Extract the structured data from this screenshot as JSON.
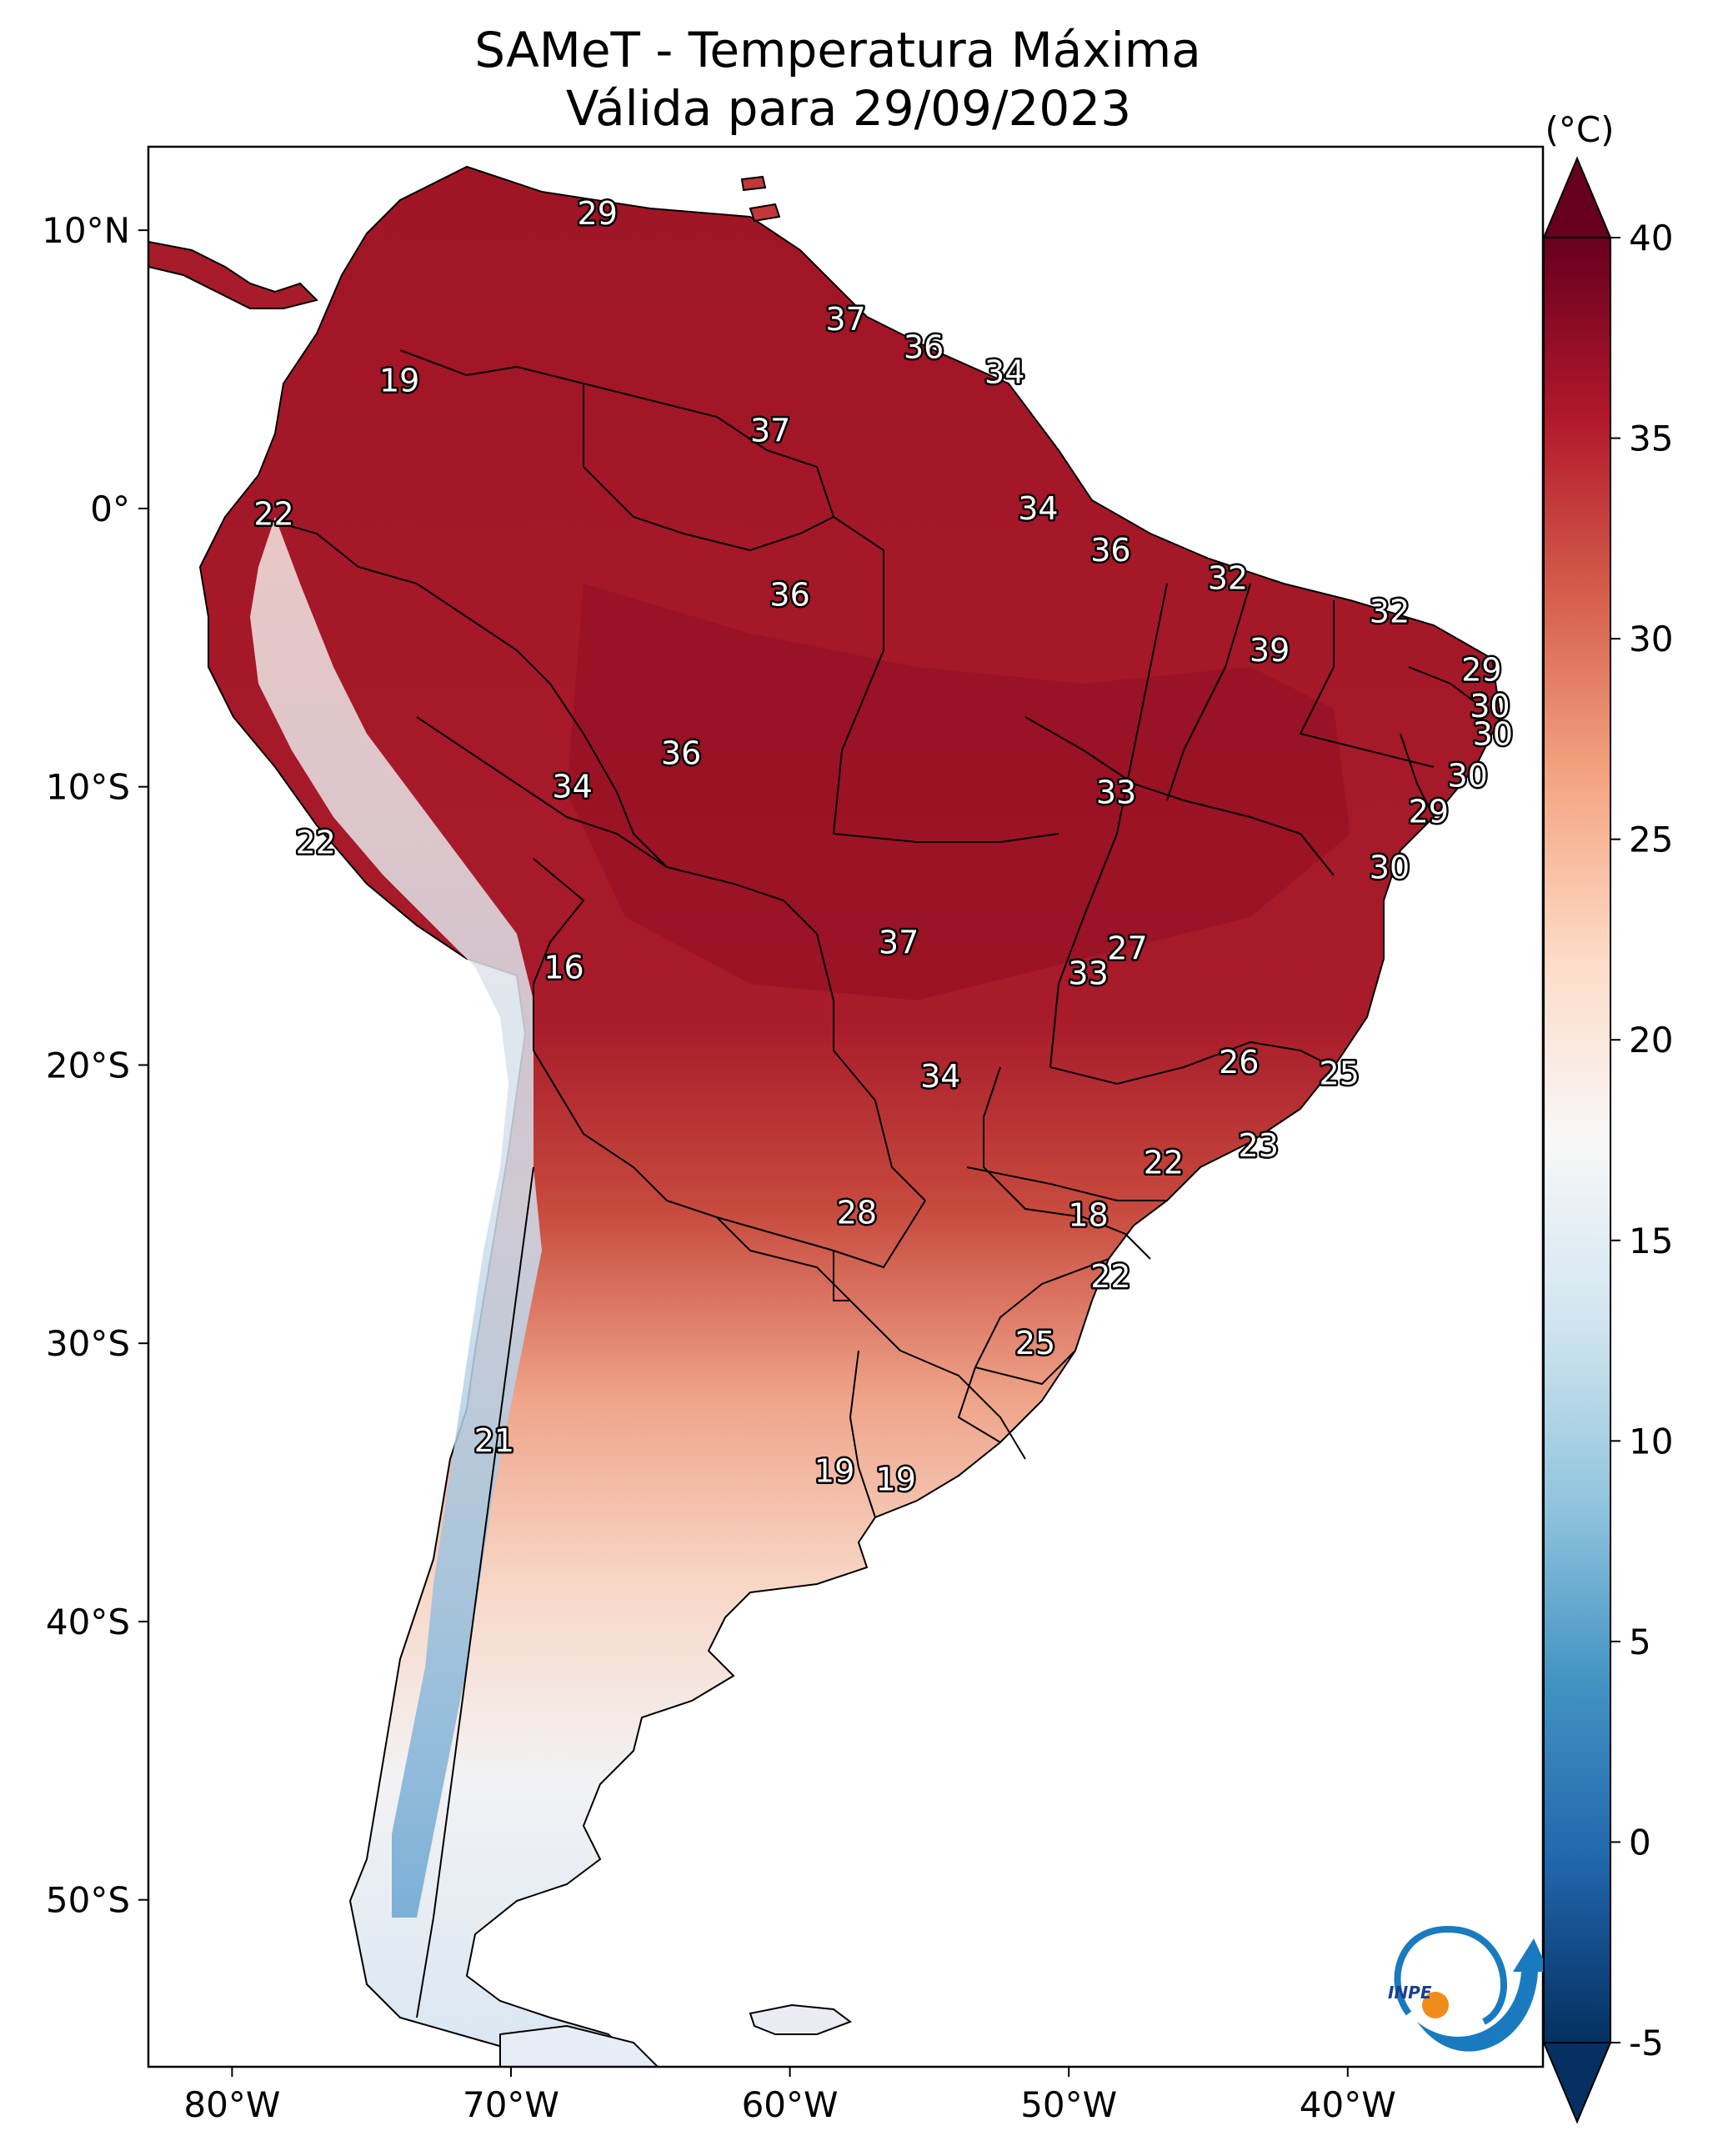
{
  "title": {
    "line1": "SAMeT - Temperatura Máxima",
    "line2": "Válida para 29/09/2023"
  },
  "map": {
    "extent": {
      "lon": [
        -83,
        -33
      ],
      "lat": [
        -56,
        13
      ]
    },
    "lon_ticks": [
      {
        "value": -80,
        "label": "80°W"
      },
      {
        "value": -70,
        "label": "70°W"
      },
      {
        "value": -60,
        "label": "60°W"
      },
      {
        "value": -50,
        "label": "50°W"
      },
      {
        "value": -40,
        "label": "40°W"
      }
    ],
    "lat_ticks": [
      {
        "value": 10,
        "label": "10°N"
      },
      {
        "value": 0,
        "label": "0°"
      },
      {
        "value": -10,
        "label": "10°S"
      },
      {
        "value": -20,
        "label": "20°S"
      },
      {
        "value": -30,
        "label": "30°S"
      },
      {
        "value": -40,
        "label": "40°S"
      },
      {
        "value": -50,
        "label": "50°S"
      }
    ],
    "point_labels": [
      {
        "lon": -66.9,
        "lat": 10.6,
        "text": "29"
      },
      {
        "lon": -74.0,
        "lat": 4.6,
        "text": "19"
      },
      {
        "lon": -78.5,
        "lat": -0.2,
        "text": "22"
      },
      {
        "lon": -77.0,
        "lat": -12.0,
        "text": "22"
      },
      {
        "lon": -68.1,
        "lat": -16.5,
        "text": "16"
      },
      {
        "lon": -70.6,
        "lat": -33.5,
        "text": "21"
      },
      {
        "lon": -58.0,
        "lat": 6.8,
        "text": "37"
      },
      {
        "lon": -55.2,
        "lat": 5.8,
        "text": "36"
      },
      {
        "lon": -52.3,
        "lat": 4.9,
        "text": "34"
      },
      {
        "lon": -60.7,
        "lat": 2.8,
        "text": "37"
      },
      {
        "lon": -51.1,
        "lat": 0.0,
        "text": "34"
      },
      {
        "lon": -48.5,
        "lat": -1.5,
        "text": "36"
      },
      {
        "lon": -44.3,
        "lat": -2.5,
        "text": "32"
      },
      {
        "lon": -38.5,
        "lat": -3.7,
        "text": "32"
      },
      {
        "lon": -42.8,
        "lat": -5.1,
        "text": "39"
      },
      {
        "lon": -60.0,
        "lat": -3.1,
        "text": "36"
      },
      {
        "lon": -35.2,
        "lat": -5.8,
        "text": "29"
      },
      {
        "lon": -34.9,
        "lat": -7.1,
        "text": "30"
      },
      {
        "lon": -34.8,
        "lat": -8.1,
        "text": "30"
      },
      {
        "lon": -35.7,
        "lat": -9.6,
        "text": "30"
      },
      {
        "lon": -37.1,
        "lat": -10.9,
        "text": "29"
      },
      {
        "lon": -38.5,
        "lat": -12.9,
        "text": "30"
      },
      {
        "lon": -63.9,
        "lat": -8.8,
        "text": "36"
      },
      {
        "lon": -67.8,
        "lat": -10.0,
        "text": "34"
      },
      {
        "lon": -48.3,
        "lat": -10.2,
        "text": "33"
      },
      {
        "lon": -56.1,
        "lat": -15.6,
        "text": "37"
      },
      {
        "lon": -47.9,
        "lat": -15.8,
        "text": "27"
      },
      {
        "lon": -49.3,
        "lat": -16.7,
        "text": "33"
      },
      {
        "lon": -54.6,
        "lat": -20.4,
        "text": "34"
      },
      {
        "lon": -43.9,
        "lat": -19.9,
        "text": "26"
      },
      {
        "lon": -40.3,
        "lat": -20.3,
        "text": "25"
      },
      {
        "lon": -43.2,
        "lat": -22.9,
        "text": "23"
      },
      {
        "lon": -46.6,
        "lat": -23.5,
        "text": "22"
      },
      {
        "lon": -57.6,
        "lat": -25.3,
        "text": "28"
      },
      {
        "lon": -49.3,
        "lat": -25.4,
        "text": "18"
      },
      {
        "lon": -48.5,
        "lat": -27.6,
        "text": "22"
      },
      {
        "lon": -51.2,
        "lat": -30.0,
        "text": "25"
      },
      {
        "lon": -58.4,
        "lat": -34.6,
        "text": "19"
      },
      {
        "lon": -56.2,
        "lat": -34.9,
        "text": "19"
      }
    ]
  },
  "colorbar": {
    "unit_label": "(°C)",
    "range": [
      -5,
      40
    ],
    "ticks": [
      "40",
      "35",
      "30",
      "25",
      "20",
      "15",
      "10",
      "5",
      "0",
      "-5"
    ],
    "colors": [
      "#053061",
      "#2166ac",
      "#4393c3",
      "#92c5de",
      "#d1e5f0",
      "#f7f7f7",
      "#fddbc7",
      "#f4a582",
      "#d6604d",
      "#b2182b",
      "#67001f"
    ]
  },
  "logo": {
    "text": "INPE"
  }
}
